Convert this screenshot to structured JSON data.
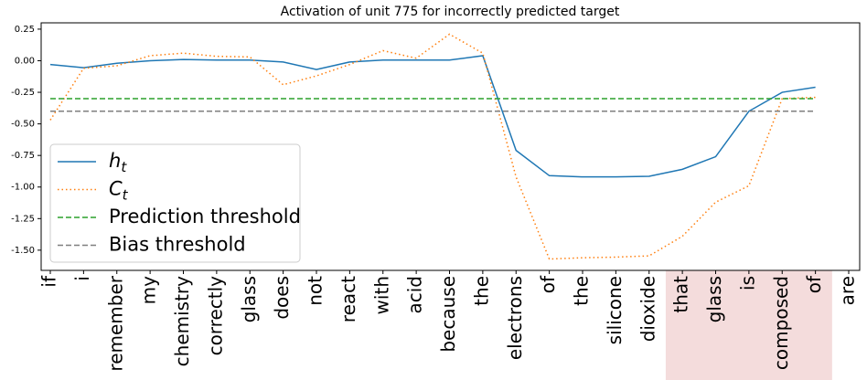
{
  "chart_data": {
    "type": "line",
    "title": "Activation of unit 775 for incorrectly predicted target",
    "categories": [
      "if",
      "i",
      "remember",
      "my",
      "chemistry",
      "correctly",
      "glass",
      "does",
      "not",
      "react",
      "with",
      "acid",
      "because",
      "the",
      "electrons",
      "of",
      "the",
      "silicone",
      "dioxide",
      "that",
      "glass",
      "is",
      "composed",
      "of",
      "are"
    ],
    "series": [
      {
        "name": "h_t",
        "color": "#1f77b4",
        "style": "solid",
        "values": [
          -0.03,
          -0.055,
          -0.02,
          0.0,
          0.01,
          0.005,
          0.005,
          -0.01,
          -0.07,
          -0.01,
          0.005,
          0.005,
          0.005,
          0.04,
          -0.71,
          -0.91,
          -0.92,
          -0.92,
          -0.915,
          -0.86,
          -0.76,
          -0.4,
          -0.25,
          -0.21,
          null
        ]
      },
      {
        "name": "C_t",
        "color": "#ff7f0e",
        "style": "dotted",
        "values": [
          -0.47,
          -0.06,
          -0.04,
          0.04,
          0.06,
          0.035,
          0.03,
          -0.19,
          -0.12,
          -0.03,
          0.08,
          0.02,
          0.21,
          0.06,
          -0.92,
          -1.57,
          -1.56,
          -1.555,
          -1.545,
          -1.39,
          -1.12,
          -0.99,
          -0.3,
          -0.29,
          null
        ]
      },
      {
        "name": "Prediction threshold",
        "color": "#2ca02c",
        "style": "dashed",
        "values": [
          -0.3,
          -0.3,
          -0.3,
          -0.3,
          -0.3,
          -0.3,
          -0.3,
          -0.3,
          -0.3,
          -0.3,
          -0.3,
          -0.3,
          -0.3,
          -0.3,
          -0.3,
          -0.3,
          -0.3,
          -0.3,
          -0.3,
          -0.3,
          -0.3,
          -0.3,
          -0.3,
          -0.3,
          null
        ]
      },
      {
        "name": "Bias threshold",
        "color": "#7f7f7f",
        "style": "dashed",
        "values": [
          -0.4,
          -0.4,
          -0.4,
          -0.4,
          -0.4,
          -0.4,
          -0.4,
          -0.4,
          -0.4,
          -0.4,
          -0.4,
          -0.4,
          -0.4,
          -0.4,
          -0.4,
          -0.4,
          -0.4,
          -0.4,
          -0.4,
          -0.4,
          -0.4,
          -0.4,
          -0.4,
          -0.4,
          null
        ]
      }
    ],
    "ylim": [
      -1.66,
      0.3
    ],
    "yticks": [
      {
        "value": 0.25,
        "label": "0.25"
      },
      {
        "value": 0,
        "label": "0.00"
      },
      {
        "value": -0.25,
        "label": "-0.25"
      },
      {
        "value": -0.5,
        "label": "-0.50"
      },
      {
        "value": -0.75,
        "label": "-0.75"
      },
      {
        "value": -1.0,
        "label": "-1.00"
      },
      {
        "value": -1.25,
        "label": "-1.25"
      },
      {
        "value": -1.5,
        "label": "-1.50"
      }
    ],
    "highlight_range": [
      19,
      23
    ],
    "highlight_color": "#f4dcdc",
    "legend": "lower left",
    "grid": false
  }
}
